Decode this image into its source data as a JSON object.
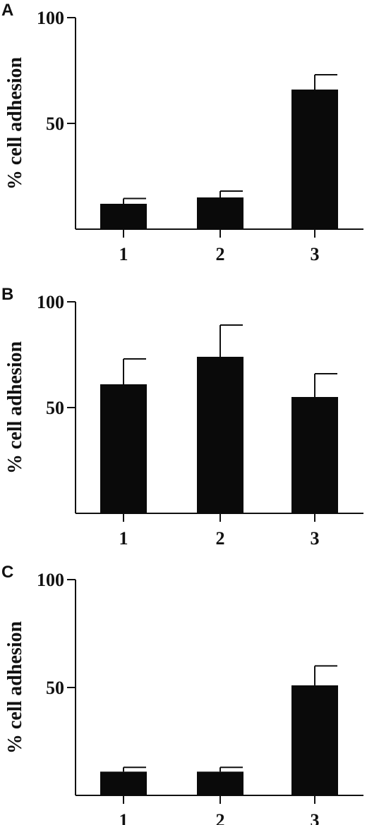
{
  "chart_data": [
    {
      "type": "bar",
      "panel_label": "A",
      "categories": [
        "1",
        "2",
        "3"
      ],
      "values": [
        12,
        15,
        66
      ],
      "errors": [
        2.5,
        3,
        7
      ],
      "ylabel": "% cell adhesion",
      "ylim": [
        0,
        100
      ],
      "yticks": [
        50,
        100
      ],
      "bar_color": "#0a0a0a"
    },
    {
      "type": "bar",
      "panel_label": "B",
      "categories": [
        "1",
        "2",
        "3"
      ],
      "values": [
        61,
        74,
        55
      ],
      "errors": [
        12,
        15,
        11
      ],
      "ylabel": "% cell adhesion",
      "ylim": [
        0,
        100
      ],
      "yticks": [
        50,
        100
      ],
      "bar_color": "#0a0a0a"
    },
    {
      "type": "bar",
      "panel_label": "C",
      "categories": [
        "1",
        "2",
        "3"
      ],
      "values": [
        11,
        11,
        51
      ],
      "errors": [
        2,
        2,
        9
      ],
      "ylabel": "% cell adhesion",
      "ylim": [
        0,
        100
      ],
      "yticks": [
        50,
        100
      ],
      "bar_color": "#0a0a0a"
    }
  ]
}
